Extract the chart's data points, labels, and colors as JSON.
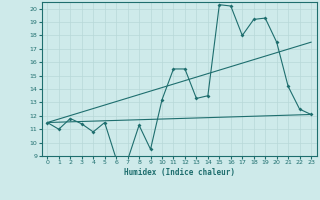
{
  "title": "",
  "xlabel": "Humidex (Indice chaleur)",
  "ylabel": "",
  "xlim": [
    -0.5,
    23.5
  ],
  "ylim": [
    9,
    20.5
  ],
  "yticks": [
    9,
    10,
    11,
    12,
    13,
    14,
    15,
    16,
    17,
    18,
    19,
    20
  ],
  "xticks": [
    0,
    1,
    2,
    3,
    4,
    5,
    6,
    7,
    8,
    9,
    10,
    11,
    12,
    13,
    14,
    15,
    16,
    17,
    18,
    19,
    20,
    21,
    22,
    23
  ],
  "bg_color": "#ceeaea",
  "grid_color": "#b8d8d8",
  "line_color": "#1e6e6e",
  "line1_x": [
    0,
    1,
    2,
    3,
    4,
    5,
    6,
    7,
    8,
    9,
    10,
    11,
    12,
    13,
    14,
    15,
    16,
    17,
    18,
    19,
    20,
    21,
    22,
    23
  ],
  "line1_y": [
    11.5,
    11.0,
    11.8,
    11.4,
    10.8,
    11.5,
    8.8,
    8.7,
    11.3,
    9.5,
    13.2,
    15.5,
    15.5,
    13.3,
    13.5,
    20.3,
    20.2,
    18.0,
    19.2,
    19.3,
    17.5,
    14.2,
    12.5,
    12.1
  ],
  "line2_x": [
    0,
    23
  ],
  "line2_y": [
    11.5,
    12.1
  ],
  "line3_x": [
    0,
    23
  ],
  "line3_y": [
    11.5,
    17.5
  ],
  "figsize": [
    3.2,
    2.0
  ],
  "dpi": 100
}
